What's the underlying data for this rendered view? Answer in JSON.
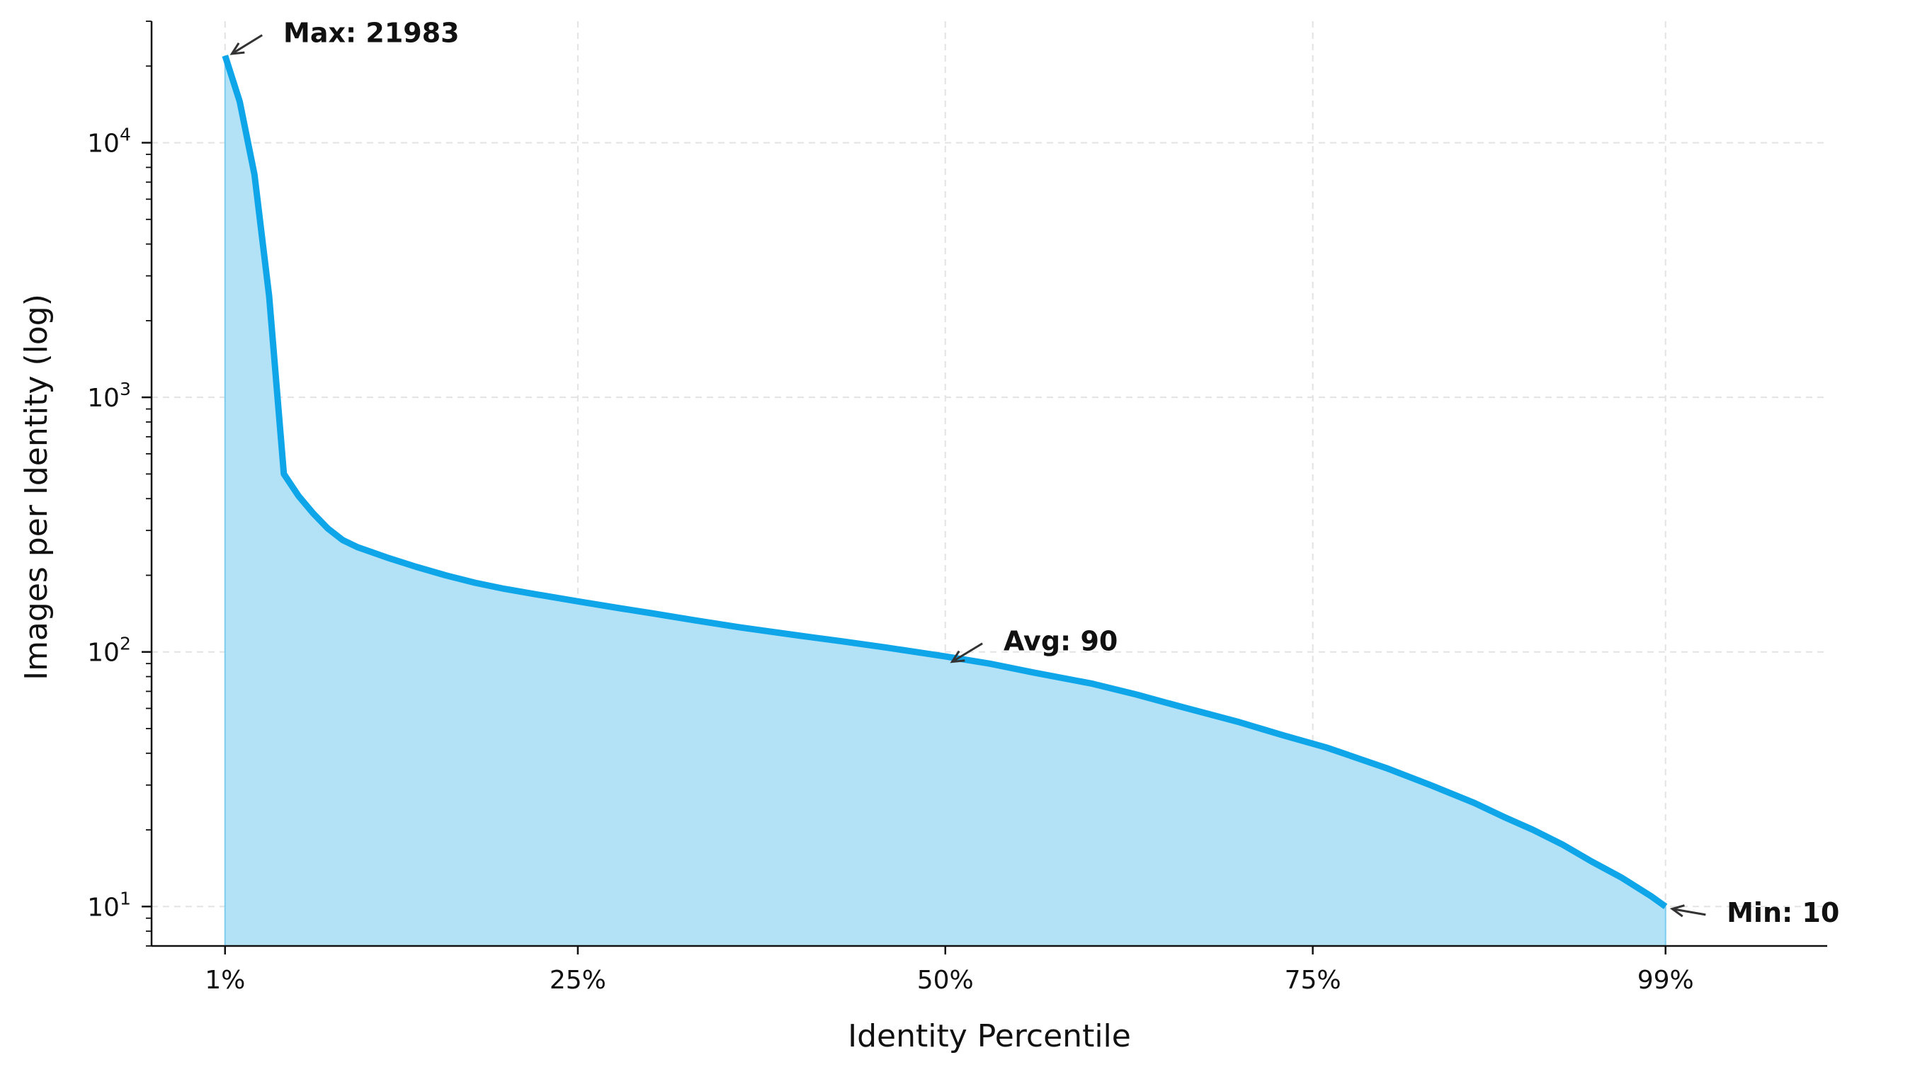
{
  "chart_data": {
    "type": "area",
    "xlabel": "Identity Percentile",
    "ylabel": "Images per Identity (log)",
    "yscale": "log",
    "ylim": [
      7,
      30000
    ],
    "xlim": [
      -4,
      110
    ],
    "grid": true,
    "x_ticks": [
      {
        "value": 1,
        "label": "1%"
      },
      {
        "value": 25,
        "label": "25%"
      },
      {
        "value": 50,
        "label": "50%"
      },
      {
        "value": 75,
        "label": "75%"
      },
      {
        "value": 99,
        "label": "99%"
      }
    ],
    "y_ticks": [
      {
        "value": 10,
        "base": "10",
        "exp": "1"
      },
      {
        "value": 100,
        "base": "10",
        "exp": "2"
      },
      {
        "value": 1000,
        "base": "10",
        "exp": "3"
      },
      {
        "value": 10000,
        "base": "10",
        "exp": "4"
      }
    ],
    "series": [
      {
        "color": "#0ea5e9",
        "fill_color": "#b3e2f7",
        "x": [
          1,
          2,
          3,
          4,
          5,
          6,
          7,
          8,
          9,
          10,
          12,
          14,
          16,
          18,
          20,
          22,
          25,
          28,
          30,
          33,
          36,
          40,
          43,
          46,
          50,
          53,
          56,
          60,
          63,
          66,
          70,
          73,
          76,
          80,
          83,
          86,
          88,
          90,
          92,
          94,
          96,
          98,
          99
        ],
        "y": [
          21983,
          14500,
          7500,
          2500,
          500,
          410,
          350,
          305,
          275,
          258,
          235,
          216,
          200,
          187,
          177,
          169,
          158,
          148,
          142,
          133,
          125,
          116,
          110,
          104,
          96,
          90,
          83,
          75,
          68,
          61,
          53,
          47,
          42,
          35,
          30,
          25.5,
          22.5,
          20,
          17.5,
          15,
          13,
          11,
          10
        ]
      }
    ],
    "annotations": [
      {
        "text": "Max: 21983",
        "x": 1,
        "y": 21983,
        "text_x": 4,
        "text_y": 24500
      },
      {
        "text": "Avg: 90",
        "x": 50,
        "y": 90,
        "text_x": 53,
        "text_y": 100
      },
      {
        "text": "Min: 10",
        "x": 99,
        "y": 10,
        "text_x": 102.2,
        "text_y": 8.6
      }
    ]
  }
}
